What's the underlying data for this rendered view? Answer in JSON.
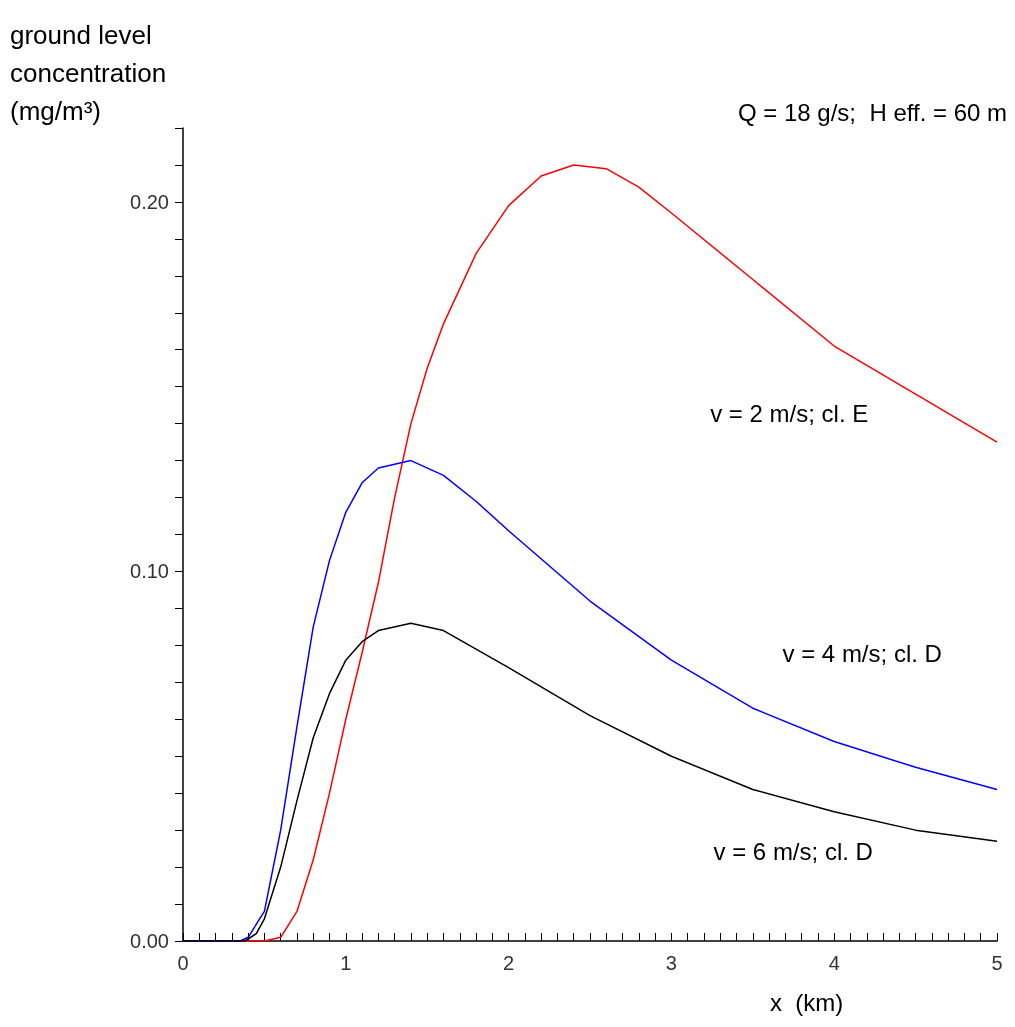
{
  "chart_data": {
    "type": "line",
    "title": "Q = 18 g/s;  H eff. = 60 m",
    "xlabel": "x  (km)",
    "ylabel": "ground level\nconcentration\n(mg/m³)",
    "xlim": [
      0,
      5
    ],
    "ylim": [
      0,
      0.22
    ],
    "xticks": [
      0,
      {
        "value": 0.1,
        "label": null
      },
      {
        "value": 0.2,
        "label": null
      },
      {
        "value": 0.3,
        "label": null
      },
      {
        "value": 0.4,
        "label": null
      },
      {
        "value": 0.5,
        "label": null
      },
      {
        "value": 0.6,
        "label": null
      },
      {
        "value": 0.7,
        "label": null
      },
      {
        "value": 0.8,
        "label": null
      },
      {
        "value": 0.9,
        "label": null
      },
      1,
      {
        "value": 1.1,
        "label": null
      },
      {
        "value": 1.2,
        "label": null
      },
      {
        "value": 1.3,
        "label": null
      },
      {
        "value": 1.4,
        "label": null
      },
      {
        "value": 1.5,
        "label": null
      },
      {
        "value": 1.6,
        "label": null
      },
      {
        "value": 1.7,
        "label": null
      },
      {
        "value": 1.8,
        "label": null
      },
      {
        "value": 1.9,
        "label": null
      },
      2,
      {
        "value": 2.1,
        "label": null
      },
      {
        "value": 2.2,
        "label": null
      },
      {
        "value": 2.3,
        "label": null
      },
      {
        "value": 2.4,
        "label": null
      },
      {
        "value": 2.5,
        "label": null
      },
      {
        "value": 2.6,
        "label": null
      },
      {
        "value": 2.7,
        "label": null
      },
      {
        "value": 2.8,
        "label": null
      },
      {
        "value": 2.9,
        "label": null
      },
      3,
      {
        "value": 3.1,
        "label": null
      },
      {
        "value": 3.2,
        "label": null
      },
      {
        "value": 3.3,
        "label": null
      },
      {
        "value": 3.4,
        "label": null
      },
      {
        "value": 3.5,
        "label": null
      },
      {
        "value": 3.6,
        "label": null
      },
      {
        "value": 3.7,
        "label": null
      },
      {
        "value": 3.8,
        "label": null
      },
      {
        "value": 3.9,
        "label": null
      },
      4,
      {
        "value": 4.1,
        "label": null
      },
      {
        "value": 4.2,
        "label": null
      },
      {
        "value": 4.3,
        "label": null
      },
      {
        "value": 4.4,
        "label": null
      },
      {
        "value": 4.5,
        "label": null
      },
      {
        "value": 4.6,
        "label": null
      },
      {
        "value": 4.7,
        "label": null
      },
      {
        "value": 4.8,
        "label": null
      },
      {
        "value": 4.9,
        "label": null
      },
      5
    ],
    "yticks": [
      {
        "value": 0,
        "label": "0.00"
      },
      {
        "value": 0.01,
        "label": null
      },
      {
        "value": 0.02,
        "label": null
      },
      {
        "value": 0.03,
        "label": null
      },
      {
        "value": 0.04,
        "label": null
      },
      {
        "value": 0.05,
        "label": null
      },
      {
        "value": 0.06,
        "label": null
      },
      {
        "value": 0.07,
        "label": null
      },
      {
        "value": 0.08,
        "label": null
      },
      {
        "value": 0.09,
        "label": null
      },
      {
        "value": 0.1,
        "label": "0.10"
      },
      {
        "value": 0.11,
        "label": null
      },
      {
        "value": 0.12,
        "label": null
      },
      {
        "value": 0.13,
        "label": null
      },
      {
        "value": 0.14,
        "label": null
      },
      {
        "value": 0.15,
        "label": null
      },
      {
        "value": 0.16,
        "label": null
      },
      {
        "value": 0.17,
        "label": null
      },
      {
        "value": 0.18,
        "label": null
      },
      {
        "value": 0.19,
        "label": null
      },
      {
        "value": 0.2,
        "label": "0.20"
      },
      {
        "value": 0.21,
        "label": null
      },
      {
        "value": 0.22,
        "label": null
      }
    ],
    "grid": false,
    "legend": false,
    "marker": "none",
    "line_style": "solid",
    "series": [
      {
        "name": "v = 2 m/s; cl. E",
        "color": "#ff0000",
        "x": [
          0,
          0.5,
          0.6,
          0.7,
          0.8,
          0.9,
          1.0,
          1.1,
          1.2,
          1.3,
          1.4,
          1.5,
          1.6,
          1.8,
          2.0,
          2.2,
          2.4,
          2.6,
          2.8,
          3.0,
          3.5,
          4.0,
          4.5,
          5.0
        ],
        "values": [
          0,
          0,
          0.001,
          0.008,
          0.022,
          0.04,
          0.06,
          0.078,
          0.097,
          0.12,
          0.14,
          0.155,
          0.167,
          0.186,
          0.199,
          0.207,
          0.21,
          0.209,
          0.204,
          0.197,
          0.179,
          0.161,
          0.148,
          0.135
        ]
      },
      {
        "name": "v = 4 m/s; cl. D",
        "color": "#0000ff",
        "x": [
          0,
          0.35,
          0.4,
          0.5,
          0.6,
          0.7,
          0.8,
          0.9,
          1.0,
          1.1,
          1.2,
          1.4,
          1.6,
          1.8,
          2.0,
          2.5,
          3.0,
          3.5,
          4.0,
          4.5,
          5.0
        ],
        "values": [
          0,
          0,
          0.001,
          0.008,
          0.03,
          0.058,
          0.085,
          0.103,
          0.116,
          0.124,
          0.128,
          0.13,
          0.126,
          0.119,
          0.111,
          0.092,
          0.076,
          0.063,
          0.054,
          0.047,
          0.041
        ]
      },
      {
        "name": "v = 6 m/s; cl. D",
        "color": "#000000",
        "x": [
          0,
          0.38,
          0.45,
          0.5,
          0.6,
          0.7,
          0.8,
          0.9,
          1.0,
          1.1,
          1.2,
          1.4,
          1.6,
          1.8,
          2.0,
          2.5,
          3.0,
          3.5,
          4.0,
          4.5,
          5.0
        ],
        "values": [
          0,
          0,
          0.002,
          0.006,
          0.02,
          0.038,
          0.055,
          0.067,
          0.076,
          0.081,
          0.084,
          0.086,
          0.084,
          0.079,
          0.074,
          0.061,
          0.05,
          0.041,
          0.035,
          0.03,
          0.027
        ]
      }
    ]
  }
}
